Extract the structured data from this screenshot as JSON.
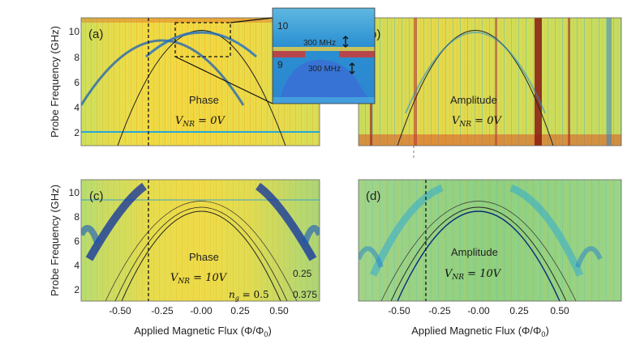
{
  "figure": {
    "y_axis_label": "Probe Frequency (GHz)",
    "x_axis_label": "Applied Magnetic Flux (Φ/Φ",
    "x_axis_label_sub": "0",
    "x_axis_label_close": ")",
    "y_ticks": [
      "10",
      "8",
      "6",
      "4",
      "2"
    ],
    "x_ticks": [
      "-0.50",
      "-0.25",
      "-0.00",
      "0.25",
      "0.50"
    ],
    "colors": {
      "background": "#ffffff",
      "hot": "#d62a1f",
      "warm": "#f4d63c",
      "mid": "#8fd06a",
      "cool": "#27a8d8",
      "cold": "#0c2fa0"
    }
  },
  "panels": [
    {
      "id": "a",
      "label": "(a)",
      "kind": "Phase",
      "voltage_main": "V",
      "voltage_sub": "NR",
      "voltage_value": " = 0V"
    },
    {
      "id": "b",
      "label": "(b)",
      "kind": "Amplitude",
      "voltage_main": "V",
      "voltage_sub": "NR",
      "voltage_value": " = 0V"
    },
    {
      "id": "c",
      "label": "(c)",
      "kind": "Phase",
      "voltage_main": "V",
      "voltage_sub": "NR",
      "voltage_value": " = 10V",
      "ng_main": "n",
      "ng_sub": "g",
      "ng_value": " = 0.5",
      "annot_025": "0.25",
      "annot_0375": "0.375"
    },
    {
      "id": "d",
      "label": "(d)",
      "kind": "Amplitude",
      "voltage_main": "V",
      "voltage_sub": "NR",
      "voltage_value": " = 10V"
    }
  ],
  "inset": {
    "tick_10": "10",
    "tick_9": "9",
    "gap_upper": "300 MHz",
    "gap_lower": "300 MHz"
  }
}
